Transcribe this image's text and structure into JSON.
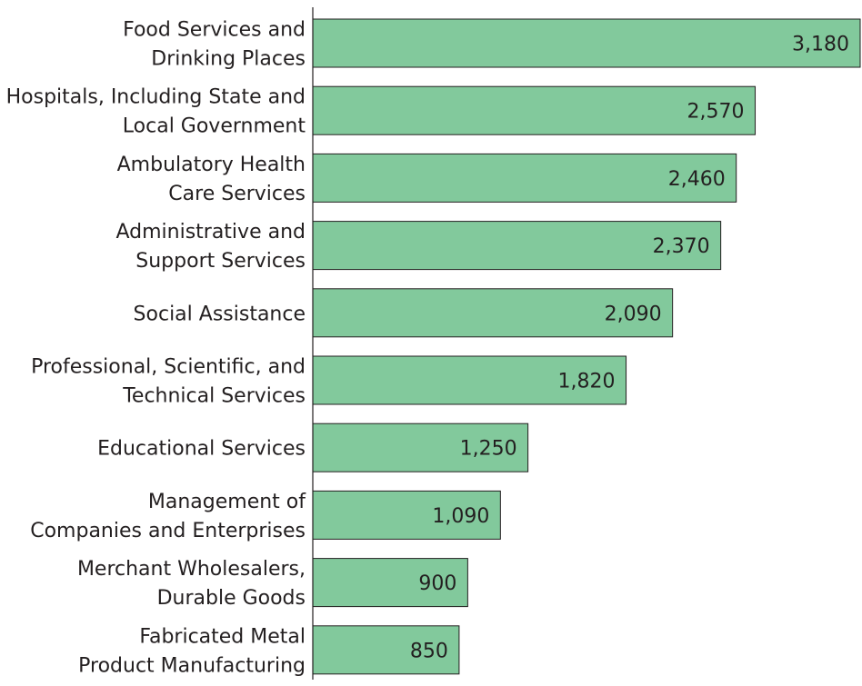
{
  "chart_data": {
    "type": "bar",
    "orientation": "horizontal",
    "title": "",
    "xlabel": "",
    "ylabel": "",
    "categories": [
      [
        "Food Services and",
        "Drinking Places"
      ],
      [
        "Hospitals, Including State and",
        "Local Government"
      ],
      [
        "Ambulatory Health",
        "Care Services"
      ],
      [
        "Administrative and",
        "Support Services"
      ],
      [
        "Social Assistance"
      ],
      [
        "Professional, Scientific, and",
        "Technical Services"
      ],
      [
        "Educational Services"
      ],
      [
        "Management of",
        "Companies and Enterprises"
      ],
      [
        "Merchant Wholesalers,",
        "Durable Goods"
      ],
      [
        "Fabricated Metal",
        "Product Manufacturing"
      ]
    ],
    "values": [
      3180,
      2570,
      2460,
      2370,
      2090,
      1820,
      1250,
      1090,
      900,
      850
    ],
    "value_labels": [
      "3,180",
      "2,570",
      "2,460",
      "2,370",
      "2,090",
      "1,820",
      "1,250",
      "1,090",
      "900",
      "850"
    ],
    "xlim": [
      0,
      3180
    ],
    "grid": false,
    "legend": "none",
    "colors": {
      "bar": "#82c99c",
      "bar_stroke": "#231f20",
      "text": "#231f20"
    }
  }
}
